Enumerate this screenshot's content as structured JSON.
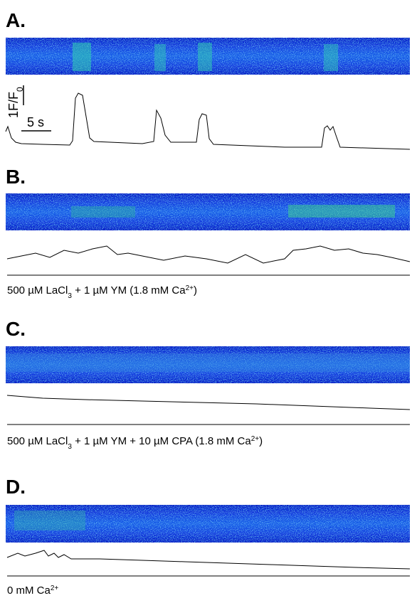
{
  "panels": [
    {
      "label": "A."
    },
    {
      "label": "B.",
      "caption": [
        "500 µM LaCl",
        "3",
        " + 1 µM YM (1.8 mM Ca",
        "2+",
        ")"
      ]
    },
    {
      "label": "C.",
      "caption": [
        "500 µM LaCl",
        "3",
        " + 1 µM YM + 10 µM CPA (1.8 mM Ca",
        "2+",
        ")"
      ]
    },
    {
      "label": "D.",
      "caption": [
        "0 mM Ca",
        "2+"
      ]
    }
  ],
  "scale_bar": {
    "amplitude": [
      "1F/F",
      "0"
    ],
    "time": "5 s"
  }
}
